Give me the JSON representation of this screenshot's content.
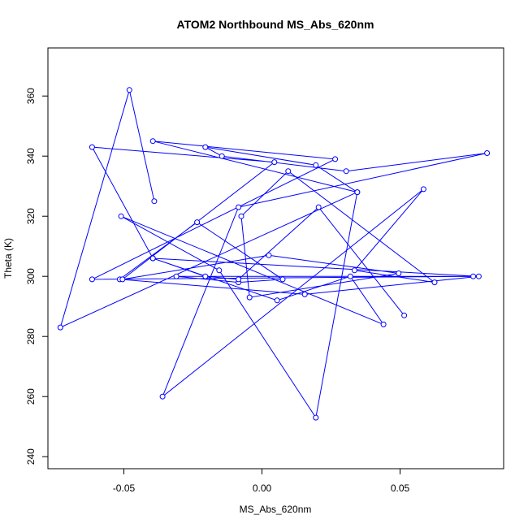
{
  "chart_data": {
    "type": "line",
    "title": "ATOM2 Northbound MS_Abs_620nm",
    "xlabel": "MS_Abs_620nm",
    "ylabel": "Theta (K)",
    "xlim": [
      -0.0775,
      0.0875
    ],
    "ylim": [
      236,
      376
    ],
    "xticks": [
      -0.05,
      0.0,
      0.05
    ],
    "xtick_labels": [
      "-0.05",
      "0.00",
      "0.05"
    ],
    "yticks": [
      240,
      260,
      280,
      300,
      320,
      340,
      360
    ],
    "ytick_labels": [
      "240",
      "260",
      "280",
      "300",
      "320",
      "340",
      "360"
    ],
    "grid": false,
    "series": [
      {
        "color": "#0000ff",
        "marker": "open-circle",
        "x": [
          -0.039,
          -0.048,
          -0.073,
          0.0345,
          0.0195,
          -0.0155,
          -0.051,
          0.044,
          0.032,
          0.0055,
          -0.0395,
          0.0785,
          0.0155,
          -0.0515,
          -0.0235,
          0.0075,
          -0.0085,
          -0.031,
          0.0765,
          -0.0615,
          0.0265,
          -0.0395,
          0.0345,
          0.0195,
          -0.0205,
          -0.0145,
          0.0305,
          0.0815,
          -0.0085,
          -0.036,
          0.0585,
          0.0335,
          0.0625,
          0.0095,
          -0.0075,
          -0.0045,
          0.0495,
          0.0025,
          -0.0505,
          0.0045,
          -0.0615,
          -0.0395,
          -0.0205,
          -0.0085,
          0.0205,
          0.0515
        ],
        "y": [
          325,
          362,
          283,
          328,
          253,
          302,
          320,
          284,
          300,
          292,
          306,
          300,
          294,
          299,
          318,
          299,
          298,
          300,
          300,
          299,
          339,
          345,
          328,
          337,
          343,
          340,
          335,
          341,
          323,
          260,
          329,
          302,
          298,
          335,
          320,
          293,
          301,
          307,
          299,
          338,
          343,
          306,
          300,
          299,
          323,
          287
        ]
      }
    ]
  }
}
